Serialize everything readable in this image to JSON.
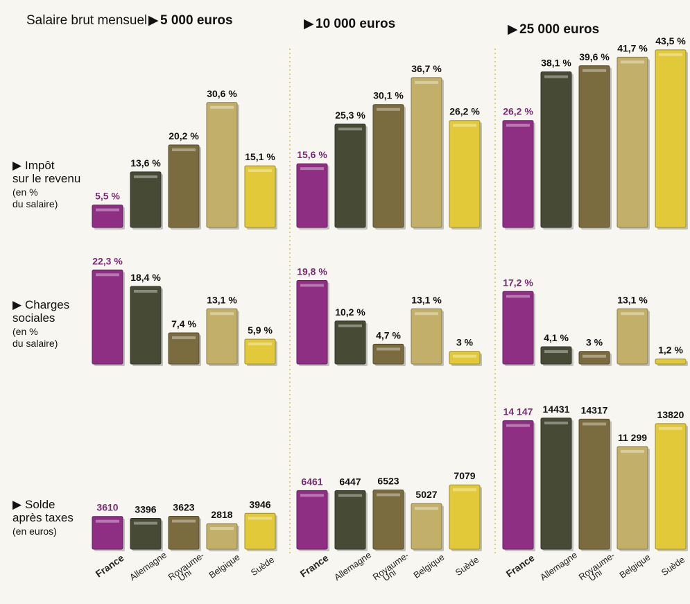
{
  "header": {
    "prefix": "Salaire brut mensuel",
    "levels": [
      "5 000 euros",
      "10 000 euros",
      "25 000 euros"
    ]
  },
  "rows": [
    {
      "label_lines": [
        "Impôt",
        "sur le revenu"
      ],
      "unit_lines": [
        "(en %",
        "du salaire)"
      ]
    },
    {
      "label_lines": [
        "Charges",
        "sociales"
      ],
      "unit_lines": [
        "(en %",
        "du salaire)"
      ]
    },
    {
      "label_lines": [
        "Solde",
        "après taxes"
      ],
      "unit_lines": [
        "(en euros)"
      ]
    }
  ],
  "colors": {
    "France": "#8e2f83",
    "Allemagne": "#474b36",
    "Royaume-Uni": "#7a6c3f",
    "Belgique": "#c2b06a",
    "Suède": "#e1c93a",
    "background": "#f7f6f1",
    "france_label": "#7a2a72"
  },
  "chart_data": [
    {
      "type": "bar",
      "row": "Impôt sur le revenu",
      "group": "5 000 euros",
      "categories": [
        "France",
        "Allemagne",
        "Royaume-Uni",
        "Belgique",
        "Suède"
      ],
      "values": [
        5.5,
        13.6,
        20.2,
        30.6,
        15.1
      ],
      "labels": [
        "5,5 %",
        "13,6 %",
        "20,2 %",
        "30,6 %",
        "15,1 %"
      ],
      "ylim": [
        0,
        45
      ]
    },
    {
      "type": "bar",
      "row": "Impôt sur le revenu",
      "group": "10 000 euros",
      "categories": [
        "France",
        "Allemagne",
        "Royaume-Uni",
        "Belgique",
        "Suède"
      ],
      "values": [
        15.6,
        25.3,
        30.1,
        36.7,
        26.2
      ],
      "labels": [
        "15,6 %",
        "25,3 %",
        "30,1 %",
        "36,7 %",
        "26,2 %"
      ],
      "ylim": [
        0,
        45
      ]
    },
    {
      "type": "bar",
      "row": "Impôt sur le revenu",
      "group": "25 000 euros",
      "categories": [
        "France",
        "Allemagne",
        "Royaume-Uni",
        "Belgique",
        "Suède"
      ],
      "values": [
        26.2,
        38.1,
        39.6,
        41.7,
        43.5
      ],
      "labels": [
        "26,2 %",
        "38,1 %",
        "39,6 %",
        "41,7 %",
        "43,5 %"
      ],
      "ylim": [
        0,
        45
      ]
    },
    {
      "type": "bar",
      "row": "Charges sociales",
      "group": "5 000 euros",
      "categories": [
        "France",
        "Allemagne",
        "Royaume-Uni",
        "Belgique",
        "Suède"
      ],
      "values": [
        22.3,
        18.4,
        7.4,
        13.1,
        5.9
      ],
      "labels": [
        "22,3 %",
        "18,4 %",
        "7,4 %",
        "13,1 %",
        "5,9 %"
      ],
      "ylim": [
        0,
        23
      ]
    },
    {
      "type": "bar",
      "row": "Charges sociales",
      "group": "10 000 euros",
      "categories": [
        "France",
        "Allemagne",
        "Royaume-Uni",
        "Belgique",
        "Suède"
      ],
      "values": [
        19.8,
        10.2,
        4.7,
        13.1,
        3
      ],
      "labels": [
        "19,8 %",
        "10,2 %",
        "4,7 %",
        "13,1 %",
        "3 %"
      ],
      "ylim": [
        0,
        23
      ]
    },
    {
      "type": "bar",
      "row": "Charges sociales",
      "group": "25 000 euros",
      "categories": [
        "France",
        "Allemagne",
        "Royaume-Uni",
        "Belgique",
        "Suède"
      ],
      "values": [
        17.2,
        4.1,
        3,
        13.1,
        1.2
      ],
      "labels": [
        "17,2 %",
        "4,1 %",
        "3 %",
        "13,1 %",
        "1,2 %"
      ],
      "ylim": [
        0,
        23
      ]
    },
    {
      "type": "bar",
      "row": "Solde après taxes",
      "group": "5 000 euros",
      "categories": [
        "France",
        "Allemagne",
        "Royaume-Uni",
        "Belgique",
        "Suède"
      ],
      "values": [
        3610,
        3396,
        3623,
        2818,
        3946
      ],
      "labels": [
        "3610",
        "3396",
        "3623",
        "2818",
        "3946"
      ],
      "ylim": [
        0,
        14500
      ]
    },
    {
      "type": "bar",
      "row": "Solde après taxes",
      "group": "10 000 euros",
      "categories": [
        "France",
        "Allemagne",
        "Royaume-Uni",
        "Belgique",
        "Suède"
      ],
      "values": [
        6461,
        6447,
        6523,
        5027,
        7079
      ],
      "labels": [
        "6461",
        "6447",
        "6523",
        "5027",
        "7079"
      ],
      "ylim": [
        0,
        14500
      ]
    },
    {
      "type": "bar",
      "row": "Solde après taxes",
      "group": "25 000 euros",
      "categories": [
        "France",
        "Allemagne",
        "Royaume-Uni",
        "Belgique",
        "Suède"
      ],
      "values": [
        14147,
        14431,
        14317,
        11299,
        13820
      ],
      "labels": [
        "14 147",
        "14431",
        "14317",
        "11 299",
        "13820"
      ],
      "ylim": [
        0,
        14500
      ]
    }
  ]
}
